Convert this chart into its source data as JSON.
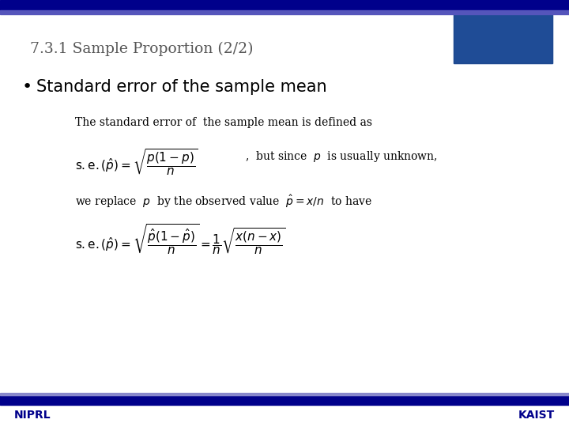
{
  "title": "7.3.1 Sample Proportion (2/2)",
  "bullet": "Standard error of the sample mean",
  "top_bar_color": "#00008B",
  "top_bar2_color": "#6666CC",
  "bottom_bar_color": "#00008B",
  "niprl_color": "#00008B",
  "kaist_color": "#00008B",
  "background_color": "#FFFFFF",
  "title_color": "#555555",
  "line1": "The standard error of  the sample mean is defined as",
  "line3": ",  but since  $p$  is usually unknown,",
  "line4": "we replace  $p$  by the observed value  $\\hat{p} = x/n$  to have"
}
